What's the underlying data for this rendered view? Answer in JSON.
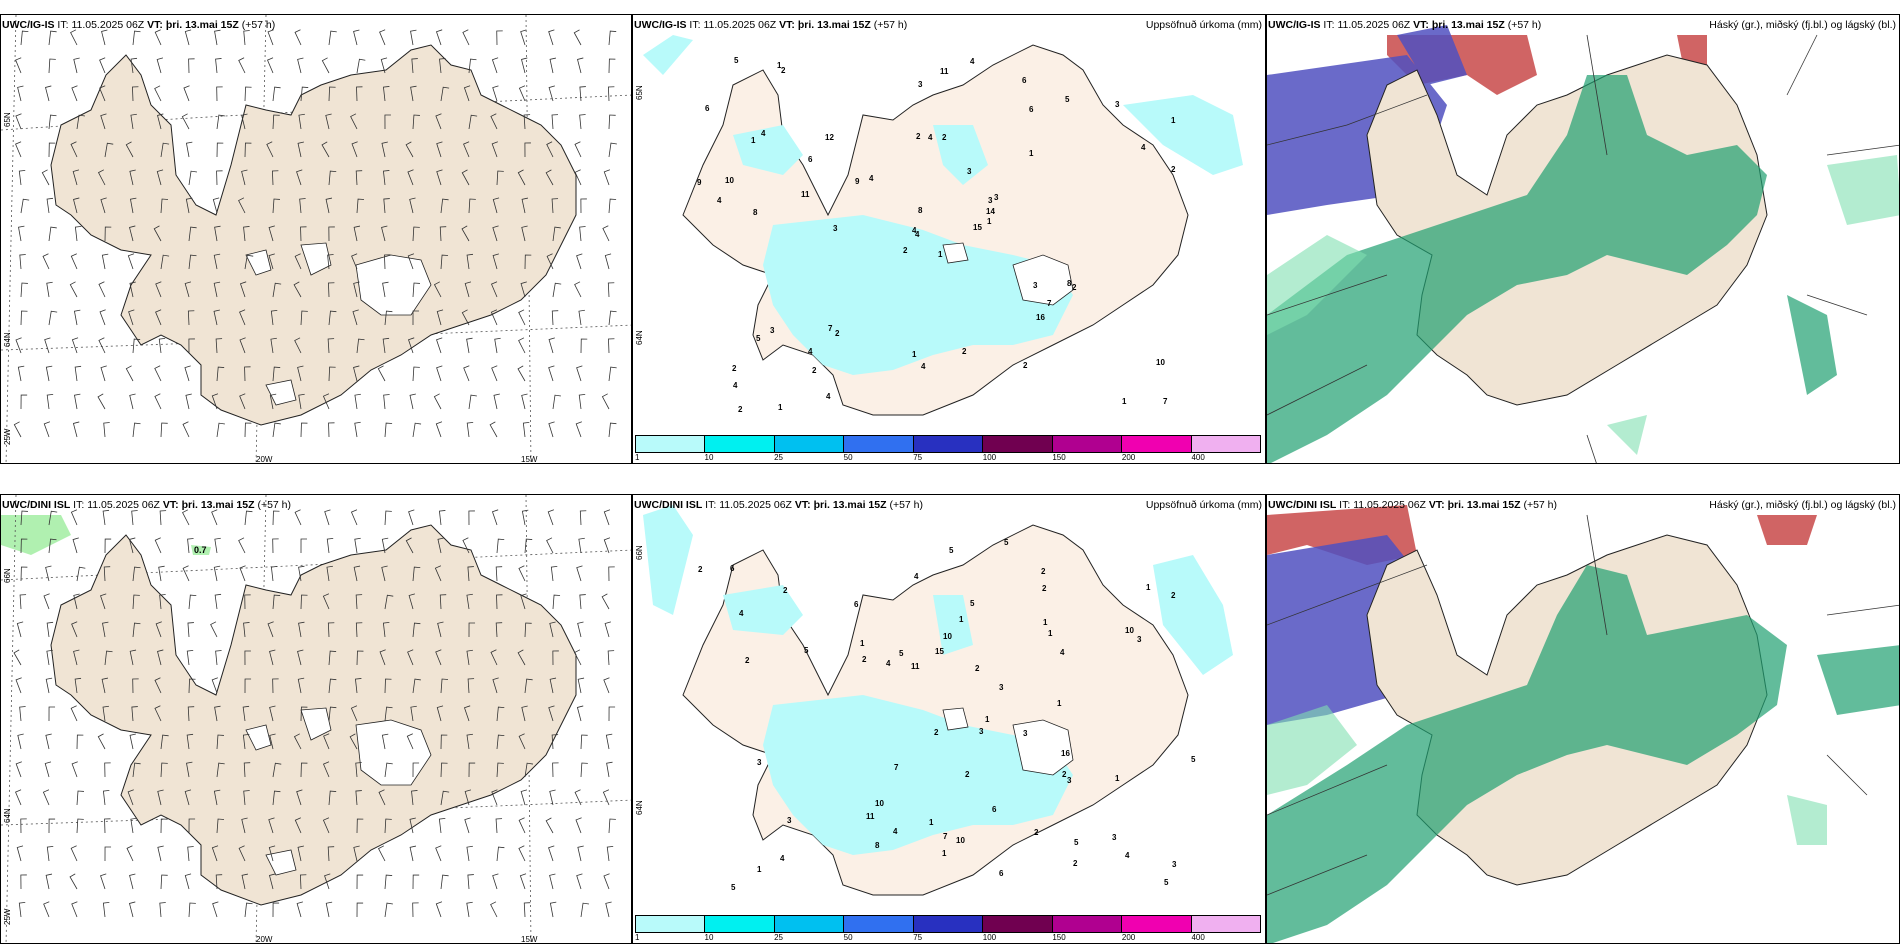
{
  "rows": [
    {
      "model": "UWC/IG-IS",
      "it_label": "IT:",
      "it_value": "11.05.2025 06Z",
      "vt_label": "VT:",
      "vt_value": "þri. 13.mai 15Z",
      "lead": "(+57 h)"
    },
    {
      "model": "UWC/DINI ISL",
      "it_label": "IT:",
      "it_value": "11.05.2025 06Z",
      "vt_label": "VT:",
      "vt_value": "þri. 13.mai 15Z",
      "lead": "(+57 h)"
    }
  ],
  "precip_title": "Uppsöfnuð úrkoma (mm)",
  "cloud_title": "Háský (gr.), miðský (fj.bl.) og lágský (bl.)",
  "lat_labels": [
    "65N",
    "64N",
    "25W"
  ],
  "lat_labels_bottom": [
    "66N",
    "64N",
    "25W"
  ],
  "precip_lat_labels": [
    "65N",
    "64N"
  ],
  "precip_lat_labels_bottom": [
    "66N",
    "64N"
  ],
  "lon_labels": [
    "20W",
    "15W"
  ],
  "wind_max_label": "0.7",
  "colorbar": {
    "ticks": [
      "1",
      "10",
      "25",
      "50",
      "75",
      "100",
      "150",
      "200",
      "400"
    ],
    "colors": [
      "#b8fafa",
      "#00f0f0",
      "#00c0f0",
      "#3070f0",
      "#2830c0",
      "#700050",
      "#b00090",
      "#f000b0",
      "#f0b0f0"
    ]
  },
  "precip_numbers_top": [
    "1",
    "1",
    "4",
    "2",
    "3",
    "2",
    "6",
    "2",
    "6",
    "15",
    "2",
    "7",
    "8",
    "1",
    "2",
    "1",
    "1",
    "2",
    "3",
    "3",
    "4",
    "4",
    "2",
    "4",
    "3",
    "2",
    "4",
    "3",
    "4",
    "3",
    "2",
    "4",
    "1",
    "8",
    "12",
    "5",
    "7",
    "1",
    "10",
    "8",
    "4",
    "9",
    "11",
    "16",
    "4",
    "9",
    "14",
    "2",
    "4",
    "1",
    "5",
    "4",
    "6",
    "7",
    "2",
    "4",
    "1",
    "5",
    "2",
    "3",
    "11",
    "3",
    "10",
    "6"
  ],
  "precip_numbers_bottom": [
    "1",
    "1",
    "1",
    "2",
    "4",
    "5",
    "3",
    "2",
    "5",
    "11",
    "5",
    "2",
    "4",
    "5",
    "2",
    "1",
    "2",
    "3",
    "2",
    "2",
    "2",
    "4",
    "1",
    "3",
    "3",
    "2",
    "5",
    "1",
    "3",
    "6",
    "4",
    "7",
    "5",
    "5",
    "3",
    "6",
    "7",
    "4",
    "2",
    "1",
    "5",
    "10",
    "6",
    "8",
    "1",
    "4",
    "10",
    "10",
    "5",
    "3",
    "4",
    "15",
    "6",
    "2",
    "3",
    "2",
    "10",
    "11",
    "3",
    "16",
    "2",
    "1",
    "1",
    "1"
  ],
  "colors": {
    "land": "#f0e4d4",
    "precip": "#b8fafa",
    "high_cloud": "#c03030",
    "mid_cloud": "#5050c0",
    "low_cloud": "#20a070",
    "low_cloud_light": "#80e0b0"
  }
}
